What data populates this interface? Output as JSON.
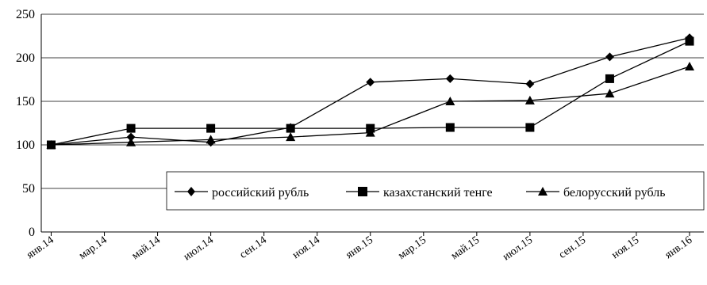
{
  "chart_data": {
    "type": "line",
    "title": "",
    "xlabel": "",
    "ylabel": "",
    "ylim": [
      0,
      250
    ],
    "yticks": [
      0,
      50,
      100,
      150,
      200,
      250
    ],
    "x_tick_labels": [
      "янв.14",
      "мар.14",
      "май.14",
      "июл.14",
      "сен.14",
      "ноя.14",
      "янв.15",
      "мар.15",
      "май.15",
      "июл.15",
      "сен.15",
      "ноя.15",
      "янв.16"
    ],
    "grid": true,
    "legend_position": "bottom-right",
    "series": [
      {
        "name": "российский рубль",
        "marker": "diamond",
        "x": [
          "янв.14",
          "апр.14",
          "июл.14",
          "окт.14",
          "янв.15",
          "апр.15",
          "июл.15",
          "окт.15",
          "янв.16"
        ],
        "values": [
          100,
          109,
          103,
          120,
          172,
          176,
          170,
          201,
          223
        ]
      },
      {
        "name": "казахстанский тенге",
        "marker": "square",
        "x": [
          "янв.14",
          "апр.14",
          "июл.14",
          "окт.14",
          "янв.15",
          "апр.15",
          "июл.15",
          "окт.15",
          "янв.16"
        ],
        "values": [
          100,
          119,
          119,
          119,
          119,
          120,
          120,
          176,
          219
        ]
      },
      {
        "name": "белорусский рубль",
        "marker": "triangle",
        "x": [
          "янв.14",
          "апр.14",
          "июл.14",
          "окт.14",
          "янв.15",
          "апр.15",
          "июл.15",
          "окт.15",
          "янв.16"
        ],
        "values": [
          100,
          103,
          106,
          109,
          114,
          150,
          151,
          159,
          190
        ]
      }
    ]
  }
}
